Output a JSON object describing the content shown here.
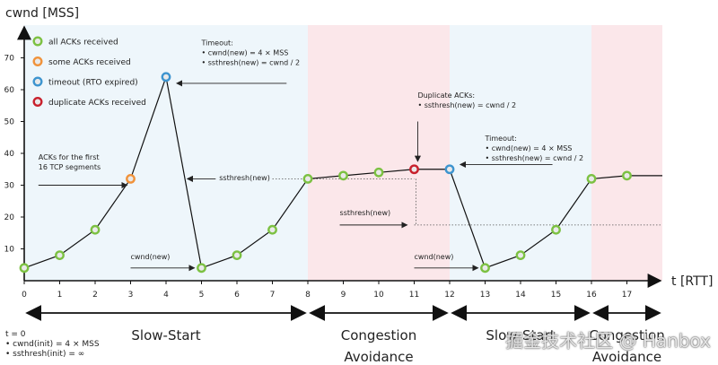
{
  "chart_data": {
    "type": "line",
    "ylabel": "cwnd [MSS]",
    "xlabel": "t [RTT]",
    "xlim": [
      0,
      18
    ],
    "ylim": [
      0,
      80
    ],
    "x_ticks": [
      0,
      1,
      2,
      3,
      4,
      5,
      6,
      7,
      8,
      9,
      10,
      11,
      12,
      13,
      14,
      15,
      16,
      17
    ],
    "y_ticks": [
      10,
      20,
      30,
      40,
      50,
      60,
      70
    ],
    "series": [
      {
        "name": "cwnd",
        "points": [
          [
            0,
            4
          ],
          [
            1,
            8
          ],
          [
            2,
            16
          ],
          [
            3,
            32
          ],
          [
            4,
            64
          ],
          [
            5,
            4
          ],
          [
            6,
            8
          ],
          [
            7,
            16
          ],
          [
            8,
            32
          ],
          [
            9,
            33
          ],
          [
            10,
            34
          ],
          [
            11,
            35
          ],
          [
            12,
            35
          ],
          [
            13,
            4
          ],
          [
            14,
            8
          ],
          [
            15,
            16
          ],
          [
            16,
            32
          ],
          [
            17,
            33
          ],
          [
            18,
            33
          ]
        ]
      }
    ],
    "markers": [
      {
        "x": 0,
        "y": 4,
        "kind": "green"
      },
      {
        "x": 1,
        "y": 8,
        "kind": "green"
      },
      {
        "x": 2,
        "y": 16,
        "kind": "green"
      },
      {
        "x": 3,
        "y": 32,
        "kind": "orange"
      },
      {
        "x": 4,
        "y": 64,
        "kind": "blue"
      },
      {
        "x": 5,
        "y": 4,
        "kind": "green"
      },
      {
        "x": 6,
        "y": 8,
        "kind": "green"
      },
      {
        "x": 7,
        "y": 16,
        "kind": "green"
      },
      {
        "x": 8,
        "y": 32,
        "kind": "green"
      },
      {
        "x": 9,
        "y": 33,
        "kind": "green"
      },
      {
        "x": 10,
        "y": 34,
        "kind": "green"
      },
      {
        "x": 11,
        "y": 35,
        "kind": "red"
      },
      {
        "x": 12,
        "y": 35,
        "kind": "blue"
      },
      {
        "x": 13,
        "y": 4,
        "kind": "green"
      },
      {
        "x": 14,
        "y": 8,
        "kind": "green"
      },
      {
        "x": 15,
        "y": 16,
        "kind": "green"
      },
      {
        "x": 16,
        "y": 32,
        "kind": "green"
      },
      {
        "x": 17,
        "y": 33,
        "kind": "green"
      }
    ],
    "legend": [
      {
        "kind": "green",
        "label": "all ACKs received"
      },
      {
        "kind": "orange",
        "label": "some ACKs received"
      },
      {
        "kind": "blue",
        "label": "timeout (RTO expired)"
      },
      {
        "kind": "red",
        "label": "duplicate ACKs received"
      }
    ],
    "marker_colors": {
      "green": "#7cc142",
      "orange": "#f0923a",
      "blue": "#3d94cf",
      "red": "#c8202c"
    },
    "phases": [
      {
        "from": 0,
        "to": 8,
        "label": [
          "Slow-Start"
        ],
        "color": "#eef6fb"
      },
      {
        "from": 8,
        "to": 12,
        "label": [
          "Congestion",
          "Avoidance"
        ],
        "color": "#fbe7ea"
      },
      {
        "from": 12,
        "to": 16,
        "label": [
          "Slow-Start"
        ],
        "color": "#eef6fb"
      },
      {
        "from": 16,
        "to": 18,
        "label": [
          "Congestion",
          "Avoidance"
        ],
        "color": "#fbe7ea"
      }
    ],
    "ssthresh_lines": [
      {
        "from": 7,
        "to": 11,
        "y": 32
      },
      {
        "from": 11,
        "to": 18,
        "y": 17.5
      }
    ],
    "annotations": [
      {
        "id": "first16",
        "lines": [
          "ACKs for the first",
          "16 TCP segments"
        ],
        "x": 0.4,
        "y": 38,
        "arrow": [
          [
            0.4,
            30
          ],
          [
            2.9,
            30
          ]
        ]
      },
      {
        "id": "timeout1",
        "lines": [
          "Timeout:",
          "• cwnd(new) = 4 × MSS",
          "• ssthresh(new) = cwnd / 2"
        ],
        "x": 5.0,
        "y": 74,
        "arrow": [
          [
            7.4,
            62
          ],
          [
            4.3,
            62
          ]
        ]
      },
      {
        "id": "ss1",
        "lines": [
          "ssthresh(new)"
        ],
        "x": 5.5,
        "y": 31.5,
        "arrow": [
          [
            5.4,
            32
          ],
          [
            4.6,
            32
          ]
        ]
      },
      {
        "id": "cwnd1",
        "lines": [
          "cwnd(new)"
        ],
        "x": 3.0,
        "y": 6.8,
        "arrow": [
          [
            3.0,
            4
          ],
          [
            4.8,
            4
          ]
        ]
      },
      {
        "id": "dup",
        "lines": [
          "Duplicate ACKs:",
          "• ssthresh(new) = cwnd / 2"
        ],
        "x": 11.1,
        "y": 57.5,
        "arrow": [
          [
            11.1,
            50
          ],
          [
            11.1,
            37.5
          ]
        ]
      },
      {
        "id": "ss2",
        "lines": [
          "ssthresh(new)"
        ],
        "x": 8.9,
        "y": 20.5,
        "arrow": [
          [
            8.9,
            17.5
          ],
          [
            10.8,
            17.5
          ]
        ]
      },
      {
        "id": "timeout2",
        "lines": [
          "Timeout:",
          "• cwnd(new) = 4 × MSS",
          "• ssthresh(new) = cwnd / 2"
        ],
        "x": 13.0,
        "y": 44,
        "arrow": [
          [
            14.9,
            36.5
          ],
          [
            12.3,
            36.5
          ]
        ]
      },
      {
        "id": "cwnd2",
        "lines": [
          "cwnd(new)"
        ],
        "x": 11.0,
        "y": 6.8,
        "arrow": [
          [
            11.0,
            4
          ],
          [
            12.8,
            4
          ]
        ]
      }
    ]
  },
  "footnote": {
    "line1": "t = 0",
    "line2": "• cwnd(init) = 4 × MSS",
    "line3": "• ssthresh(init) = ∞"
  },
  "watermark": "掘金技术社区 @ Hanbox"
}
